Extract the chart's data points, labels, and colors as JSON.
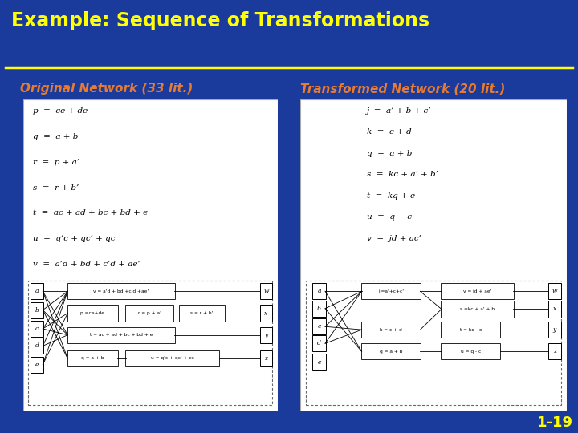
{
  "title": "Example: Sequence of Transformations",
  "title_color": "#FFFF00",
  "bg_color": "#1a3a9c",
  "header_line_color": "#FFFF00",
  "slide_number": "1-19",
  "slide_number_color": "#FFFF00",
  "left_label": "Original Network (33 lit.)",
  "right_label": "Transformed Network (20 lit.)",
  "label_color": "#E87B30",
  "left_equations": [
    "p  =  ce + de",
    "q  =  a + b",
    "r  =  p + a’",
    "s  =  r + b’",
    "t  =  ac + ad + bc + bd + e",
    "u  =  q’c + qc’ + qc",
    "v  =  a’d + bd + c’d + ae’"
  ],
  "right_equations": [
    "j  =  a’ + b + c’",
    "k  =  c + d",
    "q  =  a + b",
    "s  =  kc + a’ + b’",
    "t  =  kq + e",
    "u  =  q + c",
    "v  =  jd + ac’"
  ]
}
